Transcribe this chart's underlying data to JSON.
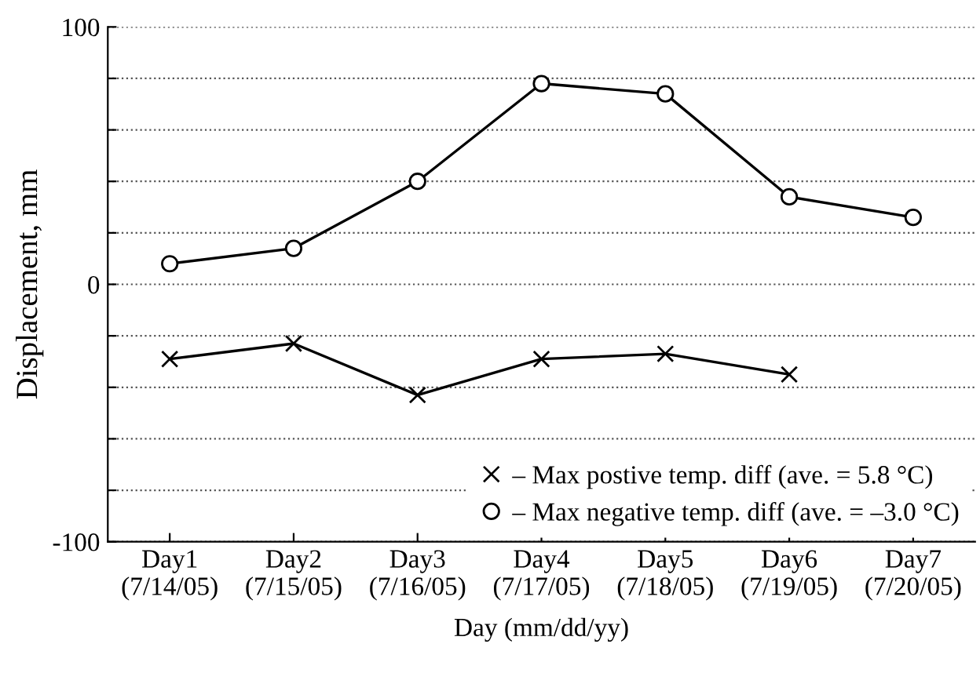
{
  "chart_data": {
    "type": "line",
    "xlabel": "Day (mm/dd/yy)",
    "ylabel": "Displacement, mm",
    "categories": [
      "Day1\n(7/14/05)",
      "Day2\n(7/15/05)",
      "Day3\n(7/16/05)",
      "Day4\n(7/17/05)",
      "Day5\n(7/18/05)",
      "Day6\n(7/19/05)",
      "Day7\n(7/20/05)"
    ],
    "series": [
      {
        "name": "– Max postive temp. diff (ave. = 5.8 °C)",
        "color": "#000000",
        "marker": "cross",
        "values": [
          -29,
          -23,
          -43,
          -29,
          -27,
          -35,
          null
        ]
      },
      {
        "name": "– Max negative temp. diff (ave. = –3.0 °C)",
        "color": "#000000",
        "marker": "circle",
        "values": [
          8,
          14,
          40,
          78,
          74,
          34,
          26
        ]
      }
    ],
    "ylim": [
      -100,
      100
    ],
    "yticks": [
      -100,
      {
        "value": -80,
        "label": null
      },
      {
        "value": -60,
        "label": null
      },
      {
        "value": -40,
        "label": null
      },
      {
        "value": -20,
        "label": null
      },
      0,
      {
        "value": 20,
        "label": null
      },
      {
        "value": 40,
        "label": null
      },
      {
        "value": 60,
        "label": null
      },
      {
        "value": 80,
        "label": null
      },
      100
    ],
    "grid": "y",
    "line_style": "solid",
    "legend": "bottom right"
  }
}
